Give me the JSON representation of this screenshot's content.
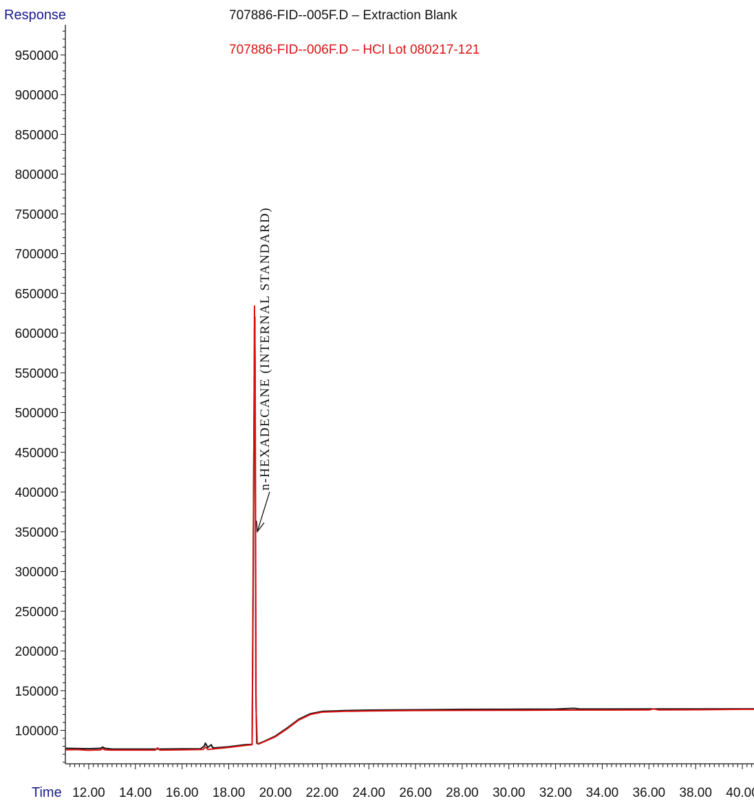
{
  "chart_data": {
    "type": "line",
    "ylabel": "Response",
    "xlabel": "Time",
    "xlim": [
      11.0,
      40.5
    ],
    "ylim": [
      58000,
      988000
    ],
    "y_ticks": [
      "100000",
      "150000",
      "200000",
      "250000",
      "300000",
      "350000",
      "400000",
      "450000",
      "500000",
      "550000",
      "600000",
      "650000",
      "700000",
      "750000",
      "800000",
      "850000",
      "900000",
      "950000"
    ],
    "x_ticks": [
      "12.00",
      "14.00",
      "16.00",
      "18.00",
      "20.00",
      "22.00",
      "24.00",
      "26.00",
      "28.00",
      "30.00",
      "32.00",
      "34.00",
      "36.00",
      "38.00",
      "40.00"
    ],
    "series": [
      {
        "name": "707886-FID--005F.D  – Extraction Blank",
        "color": "#111111",
        "x": [
          11.0,
          12.0,
          12.5,
          12.6,
          12.7,
          13.0,
          14.0,
          15.0,
          16.0,
          16.8,
          16.95,
          17.0,
          17.1,
          17.25,
          17.3,
          17.4,
          18.0,
          18.7,
          19.0,
          19.08,
          19.12,
          19.16,
          19.2,
          19.25,
          19.5,
          20.0,
          20.5,
          21.0,
          21.5,
          22.0,
          22.5,
          23.0,
          24.0,
          26.0,
          28.0,
          30.0,
          32.0,
          32.8,
          33.0,
          34.0,
          36.0,
          38.0,
          40.0,
          40.5
        ],
        "y": [
          77500,
          77000,
          77500,
          79000,
          77500,
          76500,
          76500,
          76500,
          76800,
          77000,
          80500,
          84000,
          78500,
          82000,
          78500,
          78000,
          79500,
          82000,
          82500,
          490000,
          620000,
          150000,
          84000,
          83000,
          86000,
          93000,
          103000,
          114000,
          121000,
          124000,
          124500,
          125000,
          125500,
          126000,
          126500,
          126700,
          126800,
          127800,
          127000,
          126900,
          127000,
          127000,
          127200,
          127200
        ]
      },
      {
        "name": "707886-FID--006F.D  –  HCl Lot 080217-121",
        "color": "#dd1111",
        "x": [
          11.0,
          11.5,
          12.0,
          12.5,
          12.6,
          12.7,
          13.0,
          14.0,
          14.85,
          14.95,
          15.05,
          16.0,
          16.9,
          17.0,
          17.1,
          18.0,
          18.7,
          19.0,
          19.05,
          19.1,
          19.13,
          19.17,
          19.22,
          19.3,
          19.5,
          20.0,
          20.5,
          21.0,
          21.5,
          22.0,
          22.5,
          23.0,
          24.0,
          26.0,
          28.0,
          30.0,
          32.0,
          34.0,
          36.0,
          36.2,
          36.4,
          38.0,
          40.0,
          40.5
        ],
        "y": [
          75500,
          75800,
          75000,
          75500,
          77000,
          75500,
          75200,
          75200,
          75200,
          78000,
          75200,
          75500,
          76000,
          79000,
          76000,
          78500,
          81000,
          82000,
          300000,
          634000,
          560000,
          130000,
          84000,
          83000,
          85500,
          92000,
          102000,
          113000,
          120000,
          123000,
          123500,
          124000,
          124500,
          125000,
          125200,
          125300,
          125500,
          125600,
          125700,
          127000,
          125800,
          126000,
          126500,
          126500
        ]
      }
    ],
    "annotations": [
      {
        "text": "n-HEXADECANE  (INTERNAL  STANDARD)",
        "x": 19.22,
        "y": 350000
      }
    ]
  }
}
